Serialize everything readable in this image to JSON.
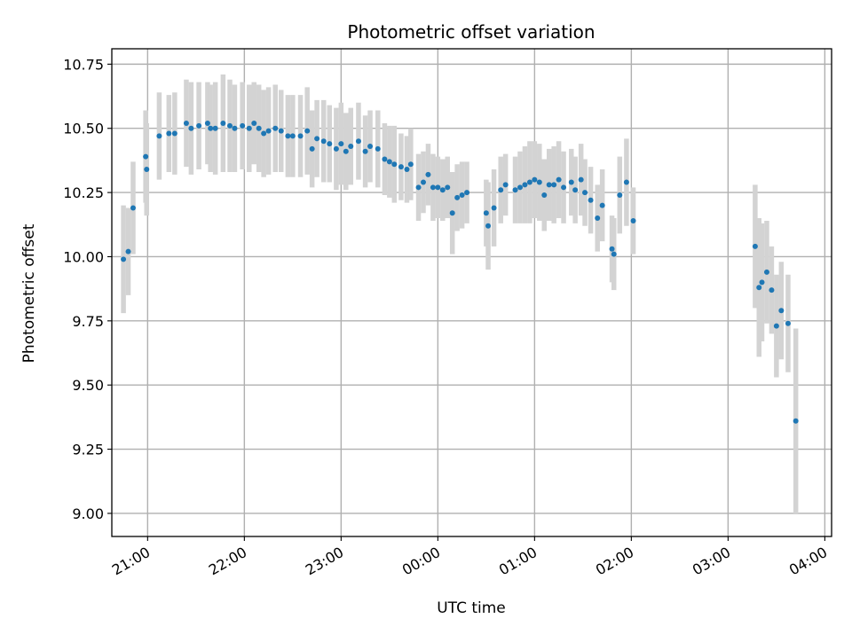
{
  "chart_data": {
    "type": "scatter",
    "title": "Photometric offset variation",
    "xlabel": "UTC time",
    "ylabel": "Photometric offset",
    "xlim_hours": [
      20.63,
      28.07
    ],
    "ylim": [
      8.91,
      10.81
    ],
    "x_ticks": [
      {
        "hour": 21,
        "label": "21:00"
      },
      {
        "hour": 22,
        "label": "22:00"
      },
      {
        "hour": 23,
        "label": "23:00"
      },
      {
        "hour": 24,
        "label": "00:00"
      },
      {
        "hour": 25,
        "label": "01:00"
      },
      {
        "hour": 26,
        "label": "02:00"
      },
      {
        "hour": 27,
        "label": "03:00"
      },
      {
        "hour": 28,
        "label": "04:00"
      }
    ],
    "y_ticks": [
      {
        "value": 9.0,
        "label": "9.00"
      },
      {
        "value": 9.25,
        "label": "9.25"
      },
      {
        "value": 9.5,
        "label": "9.50"
      },
      {
        "value": 9.75,
        "label": "9.75"
      },
      {
        "value": 10.0,
        "label": "10.00"
      },
      {
        "value": 10.25,
        "label": "10.25"
      },
      {
        "value": 10.5,
        "label": "10.50"
      },
      {
        "value": 10.75,
        "label": "10.75"
      }
    ],
    "grid": true,
    "point_color": "#1f77b4",
    "errorbar_color": "#d3d3d3",
    "series": [
      {
        "x_unit": "hours since 00:00 UTC (values above 24 are after midnight)",
        "x": [
          20.75,
          20.8,
          20.85,
          20.98,
          20.99,
          21.12,
          21.22,
          21.28,
          21.4,
          21.45,
          21.53,
          21.62,
          21.65,
          21.7,
          21.78,
          21.85,
          21.9,
          21.98,
          22.05,
          22.1,
          22.15,
          22.2,
          22.25,
          22.32,
          22.38,
          22.45,
          22.5,
          22.58,
          22.65,
          22.7,
          22.75,
          22.82,
          22.88,
          22.95,
          23.0,
          23.05,
          23.1,
          23.18,
          23.25,
          23.3,
          23.38,
          23.45,
          23.5,
          23.55,
          23.62,
          23.68,
          23.72,
          23.8,
          23.85,
          23.9,
          23.95,
          24.0,
          24.05,
          24.1,
          24.15,
          24.2,
          24.25,
          24.3,
          24.5,
          24.52,
          24.58,
          24.65,
          24.7,
          24.8,
          24.85,
          24.9,
          24.95,
          25.0,
          25.05,
          25.1,
          25.15,
          25.2,
          25.25,
          25.3,
          25.38,
          25.42,
          25.48,
          25.52,
          25.58,
          25.65,
          25.7,
          25.8,
          25.82,
          25.88,
          25.95,
          26.02,
          27.28,
          27.32,
          27.35,
          27.4,
          27.45,
          27.5,
          27.55,
          27.62,
          27.7
        ],
        "y": [
          9.99,
          10.02,
          10.19,
          10.39,
          10.34,
          10.47,
          10.48,
          10.48,
          10.52,
          10.5,
          10.51,
          10.52,
          10.5,
          10.5,
          10.52,
          10.51,
          10.5,
          10.51,
          10.5,
          10.52,
          10.5,
          10.48,
          10.49,
          10.5,
          10.49,
          10.47,
          10.47,
          10.47,
          10.49,
          10.42,
          10.46,
          10.45,
          10.44,
          10.42,
          10.44,
          10.41,
          10.43,
          10.45,
          10.41,
          10.43,
          10.42,
          10.38,
          10.37,
          10.36,
          10.35,
          10.34,
          10.36,
          10.27,
          10.29,
          10.32,
          10.27,
          10.27,
          10.26,
          10.27,
          10.17,
          10.23,
          10.24,
          10.25,
          10.17,
          10.12,
          10.19,
          10.26,
          10.28,
          10.26,
          10.27,
          10.28,
          10.29,
          10.3,
          10.29,
          10.24,
          10.28,
          10.28,
          10.3,
          10.27,
          10.29,
          10.26,
          10.3,
          10.25,
          10.22,
          10.15,
          10.2,
          10.03,
          10.01,
          10.24,
          10.29,
          10.14,
          10.04,
          9.88,
          9.9,
          9.94,
          9.87,
          9.73,
          9.79,
          9.74,
          9.36
        ],
        "err": [
          0.21,
          0.17,
          0.18,
          0.18,
          0.18,
          0.17,
          0.15,
          0.16,
          0.17,
          0.18,
          0.17,
          0.16,
          0.17,
          0.18,
          0.19,
          0.18,
          0.17,
          0.17,
          0.17,
          0.16,
          0.17,
          0.17,
          0.17,
          0.17,
          0.16,
          0.16,
          0.16,
          0.16,
          0.17,
          0.15,
          0.15,
          0.16,
          0.15,
          0.16,
          0.16,
          0.15,
          0.15,
          0.15,
          0.14,
          0.14,
          0.15,
          0.14,
          0.14,
          0.15,
          0.13,
          0.13,
          0.14,
          0.13,
          0.12,
          0.12,
          0.13,
          0.12,
          0.12,
          0.12,
          0.16,
          0.13,
          0.13,
          0.12,
          0.13,
          0.17,
          0.15,
          0.13,
          0.12,
          0.13,
          0.14,
          0.15,
          0.16,
          0.15,
          0.15,
          0.14,
          0.14,
          0.15,
          0.15,
          0.14,
          0.13,
          0.13,
          0.14,
          0.13,
          0.13,
          0.13,
          0.14,
          0.13,
          0.14,
          0.15,
          0.17,
          0.13,
          0.24,
          0.27,
          0.23,
          0.2,
          0.17,
          0.2,
          0.19,
          0.19,
          0.36
        ]
      }
    ]
  }
}
